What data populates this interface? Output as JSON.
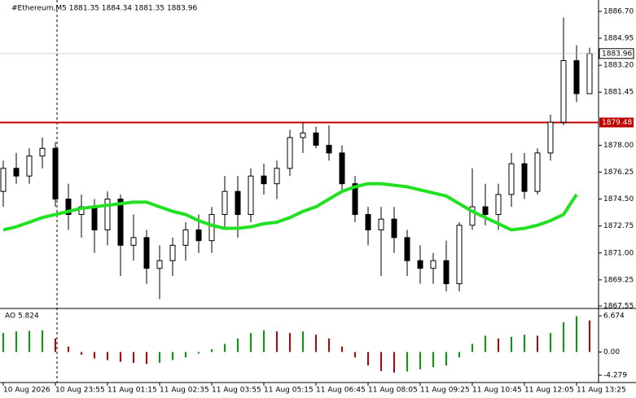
{
  "chart_data": [
    {
      "type": "candlestick",
      "title": "#Ethereum,M5  1881.35 1884.34 1881.35 1883.96",
      "categories": [
        "10 Aug 2026",
        null,
        null,
        null,
        "10 Aug 23:55",
        null,
        null,
        null,
        "11 Aug 01:15",
        null,
        null,
        null,
        "11 Aug 02:35",
        null,
        null,
        null,
        "11 Aug 03:55",
        null,
        null,
        null,
        "11 Aug 05:15",
        null,
        null,
        null,
        "11 Aug 06:45",
        null,
        null,
        null,
        "11 Aug 08:05",
        null,
        null,
        null,
        "11 Aug 09:25",
        null,
        null,
        null,
        "11 Aug 10:45",
        null,
        null,
        null,
        "11 Aug 12:05",
        null,
        null,
        null,
        "11 Aug 13:25",
        null
      ],
      "open": [
        1875.0,
        1876.5,
        1876.0,
        1877.3,
        1877.8,
        1874.5,
        1873.5,
        1874.0,
        1872.5,
        1874.5,
        1871.5,
        1872.0,
        1870.0,
        1870.5,
        1871.5,
        1872.5,
        1871.8,
        1873.5,
        1875.0,
        1873.5,
        1876.0,
        1875.5,
        1876.5,
        1878.5,
        1878.8,
        1878.0,
        1877.5,
        1875.5,
        1873.5,
        1872.5,
        1873.2,
        1872.0,
        1870.5,
        1870.0,
        1870.5,
        1869.0,
        1872.8,
        1874.0,
        1873.5,
        1874.8,
        1876.8,
        1875.0,
        1877.5,
        1879.5,
        1883.5,
        1881.35
      ],
      "high": [
        1877.0,
        1877.5,
        1877.8,
        1878.5,
        1878.2,
        1875.5,
        1874.8,
        1874.5,
        1875.0,
        1874.8,
        1873.5,
        1872.5,
        1871.5,
        1872.0,
        1873.0,
        1873.5,
        1874.0,
        1876.0,
        1876.0,
        1876.5,
        1876.8,
        1877.0,
        1879.0,
        1879.5,
        1879.2,
        1879.3,
        1878.0,
        1876.0,
        1874.0,
        1874.0,
        1874.0,
        1872.5,
        1871.5,
        1871.0,
        1871.8,
        1873.0,
        1876.5,
        1875.5,
        1875.5,
        1877.5,
        1877.5,
        1877.8,
        1880.0,
        1886.3,
        1884.5,
        1884.34
      ],
      "low": [
        1874.0,
        1875.5,
        1875.5,
        1876.5,
        1874.0,
        1872.5,
        1872.0,
        1871.0,
        1871.5,
        1869.5,
        1870.5,
        1869.0,
        1868.0,
        1869.5,
        1870.5,
        1871.0,
        1871.0,
        1872.5,
        1872.0,
        1873.0,
        1874.8,
        1874.5,
        1876.0,
        1877.5,
        1877.8,
        1877.0,
        1875.0,
        1873.0,
        1871.5,
        1869.5,
        1871.0,
        1869.5,
        1869.0,
        1869.0,
        1868.5,
        1868.5,
        1872.5,
        1872.8,
        1872.5,
        1874.0,
        1874.5,
        1874.8,
        1877.0,
        1879.3,
        1880.8,
        1881.35
      ],
      "close": [
        1876.5,
        1876.0,
        1877.3,
        1877.8,
        1874.5,
        1873.5,
        1874.0,
        1872.5,
        1874.5,
        1871.5,
        1872.0,
        1870.0,
        1870.5,
        1871.5,
        1872.5,
        1871.8,
        1873.5,
        1875.0,
        1873.5,
        1876.0,
        1875.5,
        1876.5,
        1878.5,
        1878.8,
        1878.0,
        1877.5,
        1875.5,
        1873.5,
        1872.5,
        1873.2,
        1872.0,
        1870.5,
        1870.0,
        1870.5,
        1869.0,
        1872.8,
        1874.0,
        1873.5,
        1874.8,
        1876.8,
        1875.0,
        1877.5,
        1879.5,
        1883.5,
        1881.35,
        1883.96
      ],
      "ma": [
        1872.5,
        1872.7,
        1873.0,
        1873.3,
        1873.5,
        1873.7,
        1873.9,
        1874.0,
        1874.1,
        1874.2,
        1874.3,
        1874.3,
        1874.0,
        1873.7,
        1873.5,
        1873.1,
        1872.8,
        1872.6,
        1872.6,
        1872.7,
        1872.9,
        1873.0,
        1873.3,
        1873.7,
        1874.0,
        1874.5,
        1875.0,
        1875.3,
        1875.5,
        1875.5,
        1875.4,
        1875.3,
        1875.1,
        1874.9,
        1874.7,
        1874.2,
        1873.7,
        1873.3,
        1872.9,
        1872.5,
        1872.6,
        1872.8,
        1873.1,
        1873.5,
        1874.8,
        null
      ],
      "ma_color": "#22e022",
      "up_color": "#ffffff",
      "down_color": "#000000",
      "candle_color": "#000000",
      "level": 1879.48,
      "level_color": "#c00000",
      "ylim": [
        1867.55,
        1886.7
      ],
      "yticks": [
        {
          "value": 1886.7,
          "label": "1886.70"
        },
        {
          "value": 1884.95,
          "label": "1884.95"
        },
        {
          "value": 1883.2,
          "label": "1883.20"
        },
        {
          "value": 1881.45,
          "label": "1881.45"
        },
        {
          "value": 1878.0,
          "label": "1878.00"
        },
        {
          "value": 1876.25,
          "label": "1876.25"
        },
        {
          "value": 1874.5,
          "label": "1874.50"
        },
        {
          "value": 1872.75,
          "label": "1872.75"
        },
        {
          "value": 1871.0,
          "label": "1871.00"
        },
        {
          "value": 1869.25,
          "label": "1869.25"
        },
        {
          "value": 1867.55,
          "label": "1867.55"
        }
      ]
    },
    {
      "type": "bar",
      "title": "AO 5.824",
      "values": [
        3.5,
        3.8,
        3.9,
        4.0,
        2.5,
        1.0,
        -0.5,
        -1.2,
        -1.5,
        -1.8,
        -2.0,
        -2.2,
        -2.0,
        -1.5,
        -1.0,
        -0.3,
        0.5,
        1.5,
        2.5,
        3.5,
        4.0,
        3.8,
        3.5,
        3.8,
        3.2,
        2.5,
        1.0,
        -1.0,
        -2.5,
        -3.5,
        -3.8,
        -3.6,
        -3.2,
        -2.8,
        -2.5,
        -1.0,
        1.5,
        3.0,
        2.5,
        2.8,
        3.2,
        3.0,
        3.5,
        5.5,
        6.6,
        5.824
      ],
      "up_color": "#00a000",
      "down_color": "#c00000",
      "ylim": [
        -4.279,
        6.674
      ],
      "yticks": [
        6.674,
        {
          "value": 0,
          "label": "0.00"
        },
        -4.279
      ]
    }
  ]
}
